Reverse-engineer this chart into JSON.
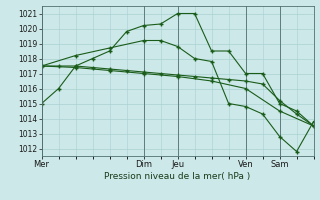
{
  "xlabel": "Pression niveau de la mer( hPa )",
  "ylim": [
    1011.5,
    1021.5
  ],
  "yticks": [
    1012,
    1013,
    1014,
    1015,
    1016,
    1017,
    1018,
    1019,
    1020,
    1021
  ],
  "xtick_labels": [
    "Mer",
    "Dim",
    "Jeu",
    "Ven",
    "Sam"
  ],
  "xtick_positions": [
    0,
    72,
    96,
    144,
    168
  ],
  "bg_color": "#cce8e8",
  "grid_color": "#aad0d0",
  "line_color": "#1a5c1a",
  "line1_x": [
    0,
    12,
    24,
    36,
    48,
    60,
    72,
    84,
    96,
    108,
    120,
    132,
    144,
    156,
    168,
    180,
    192
  ],
  "line1_y": [
    1015.0,
    1016.0,
    1017.5,
    1018.0,
    1018.5,
    1019.8,
    1020.2,
    1020.3,
    1021.0,
    1021.0,
    1018.5,
    1018.5,
    1017.0,
    1017.0,
    1015.0,
    1014.5,
    1013.5
  ],
  "line2_x": [
    0,
    12,
    24,
    36,
    48,
    60,
    72,
    84,
    96,
    108,
    120,
    132,
    144,
    156,
    168,
    180,
    192
  ],
  "line2_y": [
    1017.5,
    1017.5,
    1017.5,
    1017.4,
    1017.3,
    1017.2,
    1017.1,
    1017.0,
    1016.9,
    1016.8,
    1016.7,
    1016.6,
    1016.5,
    1016.3,
    1015.2,
    1014.3,
    1013.5
  ],
  "line3_x": [
    0,
    24,
    48,
    72,
    96,
    120,
    144,
    168,
    192
  ],
  "line3_y": [
    1017.5,
    1017.4,
    1017.2,
    1017.0,
    1016.8,
    1016.5,
    1016.0,
    1014.5,
    1013.5
  ],
  "line4_x": [
    0,
    24,
    48,
    72,
    84,
    96,
    108,
    120,
    132,
    144,
    156,
    168,
    180,
    192
  ],
  "line4_y": [
    1017.5,
    1018.2,
    1018.7,
    1019.2,
    1019.2,
    1018.8,
    1018.0,
    1017.8,
    1015.0,
    1014.8,
    1014.3,
    1012.8,
    1011.8,
    1013.8
  ],
  "vlines": [
    0,
    72,
    96,
    144,
    168,
    192
  ],
  "xlim": [
    0,
    192
  ],
  "marker_size": 2.5
}
